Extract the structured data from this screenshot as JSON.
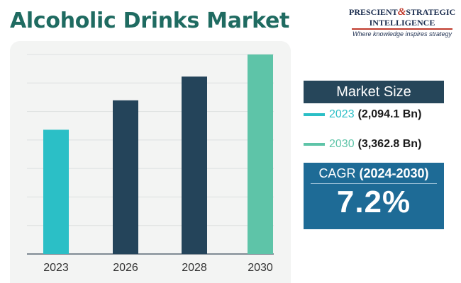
{
  "title": "Alcoholic Drinks Market",
  "logo": {
    "line1_a": "PRESCIENT",
    "line1_amp": "&",
    "line1_b": "STRATEGIC",
    "line2": "INTELLIGENCE",
    "tagline": "Where knowledge inspires strategy"
  },
  "market_size": {
    "header": "Market Size",
    "entries": [
      {
        "year": "2023",
        "value": "(2,094.1 Bn)",
        "color": "#2bbfc6"
      },
      {
        "year": "2030",
        "value": "(3,362.8 Bn)",
        "color": "#5ec4a8"
      }
    ]
  },
  "cagr": {
    "label": "CAGR",
    "period": "(2024-2030)",
    "value": "7.2%"
  },
  "chart_data": {
    "type": "bar",
    "categories": [
      "2023",
      "2026",
      "2028",
      "2030"
    ],
    "values": [
      2094.1,
      2590,
      2990,
      3362.8
    ],
    "colors": [
      "#2bbfc6",
      "#24445a",
      "#24445a",
      "#5ec4a8"
    ],
    "ylim": [
      0,
      3362.8
    ],
    "grid": true,
    "title": "",
    "xlabel": "",
    "ylabel": ""
  }
}
